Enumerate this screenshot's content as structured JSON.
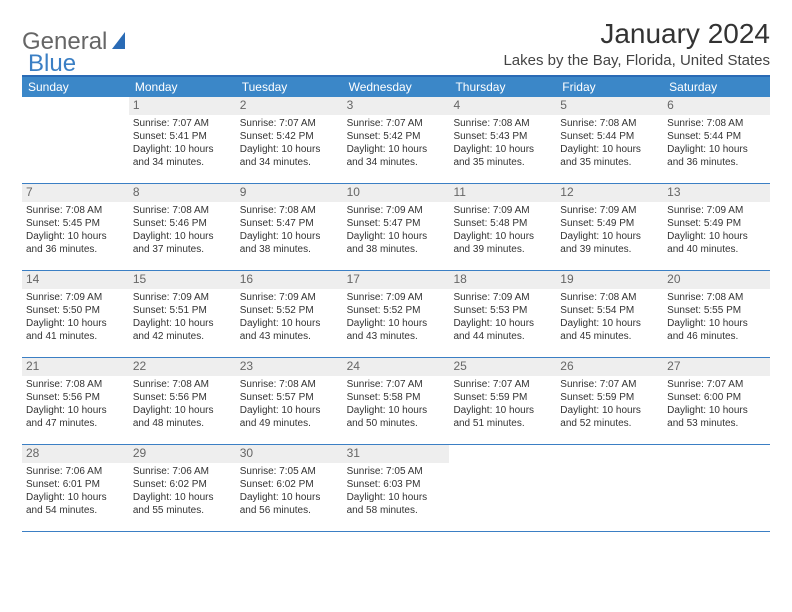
{
  "logo": {
    "text1": "General",
    "text2": "Blue"
  },
  "title": "January 2024",
  "location": "Lakes by the Bay, Florida, United States",
  "colors": {
    "header_bg": "#3b87c8",
    "border": "#3b7fc4",
    "daynum_bg": "#eeeeee",
    "text": "#333333"
  },
  "daysOfWeek": [
    "Sunday",
    "Monday",
    "Tuesday",
    "Wednesday",
    "Thursday",
    "Friday",
    "Saturday"
  ],
  "layout": {
    "firstDayColumn": 1,
    "daysInMonth": 31,
    "weeks": 5,
    "cols": 7
  },
  "days": {
    "1": {
      "sunrise": "7:07 AM",
      "sunset": "5:41 PM",
      "daylight": "10 hours and 34 minutes."
    },
    "2": {
      "sunrise": "7:07 AM",
      "sunset": "5:42 PM",
      "daylight": "10 hours and 34 minutes."
    },
    "3": {
      "sunrise": "7:07 AM",
      "sunset": "5:42 PM",
      "daylight": "10 hours and 34 minutes."
    },
    "4": {
      "sunrise": "7:08 AM",
      "sunset": "5:43 PM",
      "daylight": "10 hours and 35 minutes."
    },
    "5": {
      "sunrise": "7:08 AM",
      "sunset": "5:44 PM",
      "daylight": "10 hours and 35 minutes."
    },
    "6": {
      "sunrise": "7:08 AM",
      "sunset": "5:44 PM",
      "daylight": "10 hours and 36 minutes."
    },
    "7": {
      "sunrise": "7:08 AM",
      "sunset": "5:45 PM",
      "daylight": "10 hours and 36 minutes."
    },
    "8": {
      "sunrise": "7:08 AM",
      "sunset": "5:46 PM",
      "daylight": "10 hours and 37 minutes."
    },
    "9": {
      "sunrise": "7:08 AM",
      "sunset": "5:47 PM",
      "daylight": "10 hours and 38 minutes."
    },
    "10": {
      "sunrise": "7:09 AM",
      "sunset": "5:47 PM",
      "daylight": "10 hours and 38 minutes."
    },
    "11": {
      "sunrise": "7:09 AM",
      "sunset": "5:48 PM",
      "daylight": "10 hours and 39 minutes."
    },
    "12": {
      "sunrise": "7:09 AM",
      "sunset": "5:49 PM",
      "daylight": "10 hours and 39 minutes."
    },
    "13": {
      "sunrise": "7:09 AM",
      "sunset": "5:49 PM",
      "daylight": "10 hours and 40 minutes."
    },
    "14": {
      "sunrise": "7:09 AM",
      "sunset": "5:50 PM",
      "daylight": "10 hours and 41 minutes."
    },
    "15": {
      "sunrise": "7:09 AM",
      "sunset": "5:51 PM",
      "daylight": "10 hours and 42 minutes."
    },
    "16": {
      "sunrise": "7:09 AM",
      "sunset": "5:52 PM",
      "daylight": "10 hours and 43 minutes."
    },
    "17": {
      "sunrise": "7:09 AM",
      "sunset": "5:52 PM",
      "daylight": "10 hours and 43 minutes."
    },
    "18": {
      "sunrise": "7:09 AM",
      "sunset": "5:53 PM",
      "daylight": "10 hours and 44 minutes."
    },
    "19": {
      "sunrise": "7:08 AM",
      "sunset": "5:54 PM",
      "daylight": "10 hours and 45 minutes."
    },
    "20": {
      "sunrise": "7:08 AM",
      "sunset": "5:55 PM",
      "daylight": "10 hours and 46 minutes."
    },
    "21": {
      "sunrise": "7:08 AM",
      "sunset": "5:56 PM",
      "daylight": "10 hours and 47 minutes."
    },
    "22": {
      "sunrise": "7:08 AM",
      "sunset": "5:56 PM",
      "daylight": "10 hours and 48 minutes."
    },
    "23": {
      "sunrise": "7:08 AM",
      "sunset": "5:57 PM",
      "daylight": "10 hours and 49 minutes."
    },
    "24": {
      "sunrise": "7:07 AM",
      "sunset": "5:58 PM",
      "daylight": "10 hours and 50 minutes."
    },
    "25": {
      "sunrise": "7:07 AM",
      "sunset": "5:59 PM",
      "daylight": "10 hours and 51 minutes."
    },
    "26": {
      "sunrise": "7:07 AM",
      "sunset": "5:59 PM",
      "daylight": "10 hours and 52 minutes."
    },
    "27": {
      "sunrise": "7:07 AM",
      "sunset": "6:00 PM",
      "daylight": "10 hours and 53 minutes."
    },
    "28": {
      "sunrise": "7:06 AM",
      "sunset": "6:01 PM",
      "daylight": "10 hours and 54 minutes."
    },
    "29": {
      "sunrise": "7:06 AM",
      "sunset": "6:02 PM",
      "daylight": "10 hours and 55 minutes."
    },
    "30": {
      "sunrise": "7:05 AM",
      "sunset": "6:02 PM",
      "daylight": "10 hours and 56 minutes."
    },
    "31": {
      "sunrise": "7:05 AM",
      "sunset": "6:03 PM",
      "daylight": "10 hours and 58 minutes."
    }
  },
  "labels": {
    "sunrise": "Sunrise: ",
    "sunset": "Sunset: ",
    "daylight": "Daylight: "
  }
}
